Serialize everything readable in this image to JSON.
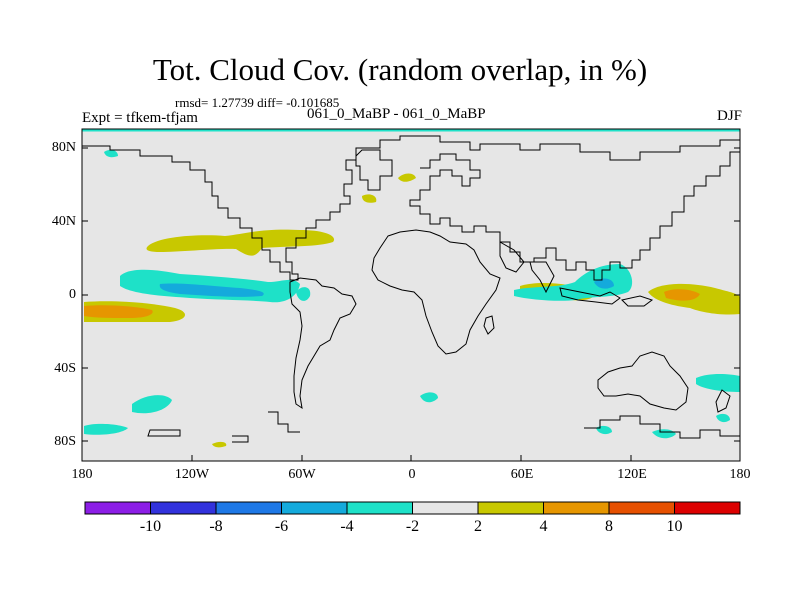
{
  "title": "Tot. Cloud Cov. (random overlap, in %)",
  "stats": "rmsd= 1.27739 diff= -0.101685",
  "experiment": "Expt = tfkem-tfjam",
  "runs": "061_0_MaBP - 061_0_MaBP",
  "season": "DJF",
  "lat_labels": [
    "80N",
    "40N",
    "0",
    "40S",
    "80S"
  ],
  "lon_labels": [
    "180",
    "120W",
    "60W",
    "0",
    "60E",
    "120E",
    "180"
  ],
  "colorbar": {
    "labels": [
      "-10",
      "-8",
      "-6",
      "-4",
      "-2",
      "2",
      "4",
      "8",
      "10"
    ],
    "colors": [
      "#8c1ee6",
      "#3232dc",
      "#1e78e6",
      "#14aadc",
      "#1ee1c8",
      "#e6e6e6",
      "#c8c800",
      "#e69600",
      "#e65000",
      "#dc0000"
    ]
  },
  "map_colors": {
    "background": "#e6e6e6",
    "coast": "#000000",
    "neg_light": "#1ee1c8",
    "neg_mid": "#14aadc",
    "pos_light": "#c8c800",
    "pos_mid": "#e69600"
  }
}
